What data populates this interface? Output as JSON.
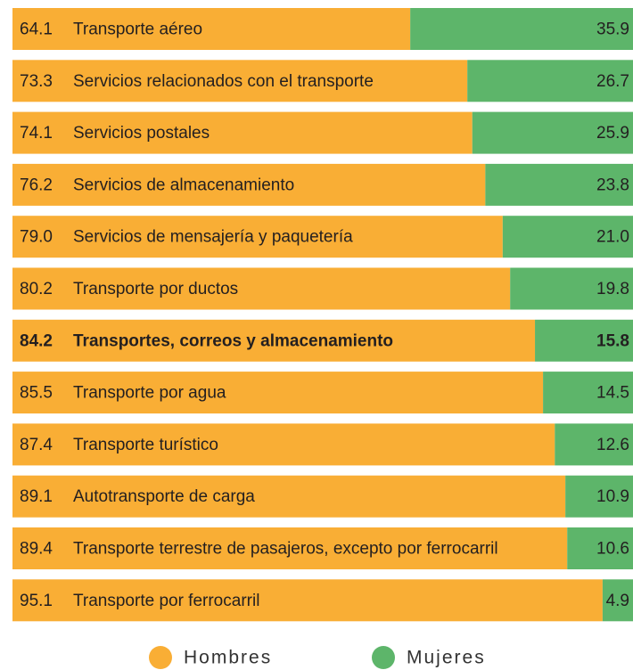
{
  "chart_data": {
    "type": "stacked_bar_horizontal",
    "categories": [
      "Transporte aéreo",
      "Servicios relacionados con el transporte",
      "Servicios postales",
      "Servicios de almacenamiento",
      "Servicios de mensajería y paquetería",
      "Transporte por ductos",
      "Transportes, correos y almacenamiento",
      "Transporte por agua",
      "Transporte turístico",
      "Autotransporte de carga",
      "Transporte terrestre de pasajeros, excepto por ferrocarril",
      "Transporte por ferrocarril"
    ],
    "series": [
      {
        "name": "Hombres",
        "color": "#f9ae35",
        "values": [
          64.1,
          73.3,
          74.1,
          76.2,
          79.0,
          80.2,
          84.2,
          85.5,
          87.4,
          89.1,
          89.4,
          95.1
        ],
        "value_labels": [
          "64.1",
          "73.3",
          "74.1",
          "76.2",
          "79.0",
          "80.2",
          "84.2",
          "85.5",
          "87.4",
          "89.1",
          "89.4",
          "95.1"
        ]
      },
      {
        "name": "Mujeres",
        "color": "#5db56a",
        "values": [
          35.9,
          26.7,
          25.9,
          23.8,
          21.0,
          19.8,
          15.8,
          14.5,
          12.6,
          10.9,
          10.6,
          4.9
        ],
        "value_labels": [
          "35.9",
          "26.7",
          "25.9",
          "23.8",
          "21.0",
          "19.8",
          "15.8",
          "14.5",
          "12.6",
          "10.9",
          "10.6",
          "4.9"
        ]
      }
    ],
    "xlim": [
      0,
      100
    ],
    "highlight": 6,
    "legend": "bottom"
  }
}
